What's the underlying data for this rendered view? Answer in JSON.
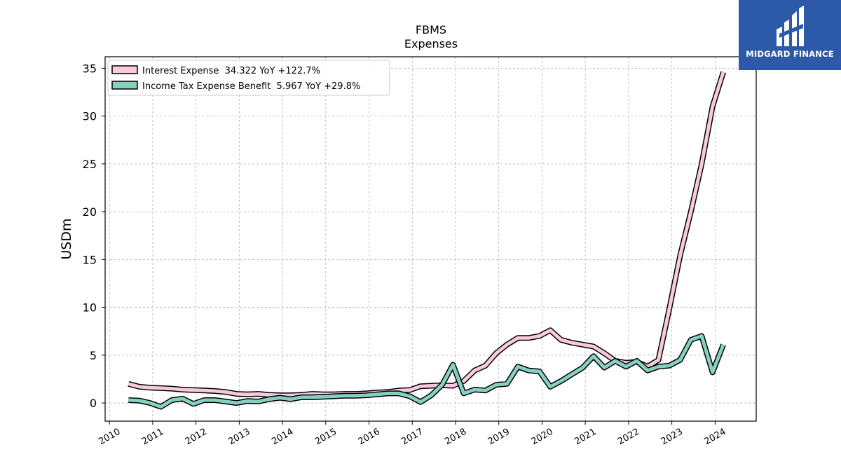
{
  "logo": {
    "brand_text": "MIDGARD FINANCE",
    "icon": "midgard-logo-icon",
    "background": "#2d5aa8"
  },
  "chart_data": {
    "type": "line",
    "title": "FBMS",
    "subtitle": "Expenses",
    "xlabel": "",
    "ylabel": "USDm",
    "xlim": [
      2009.9,
      2024.95
    ],
    "ylim": [
      -1.9,
      36.2
    ],
    "x_ticks": [
      "2010",
      "2011",
      "2012",
      "2013",
      "2014",
      "2015",
      "2016",
      "2017",
      "2018",
      "2019",
      "2020",
      "2021",
      "2022",
      "2023",
      "2024"
    ],
    "y_ticks": [
      0,
      5,
      10,
      15,
      20,
      25,
      30,
      35
    ],
    "grid": true,
    "legend_position": "top-left",
    "series": [
      {
        "name": "Interest Expense  34.322 YoY +122.7%",
        "color": "#f9c9de",
        "points": [
          [
            2010.44,
            2.0
          ],
          [
            2010.69,
            1.7
          ],
          [
            2010.94,
            1.6
          ],
          [
            2011.19,
            1.55
          ],
          [
            2011.44,
            1.5
          ],
          [
            2011.69,
            1.4
          ],
          [
            2011.94,
            1.35
          ],
          [
            2012.19,
            1.3
          ],
          [
            2012.44,
            1.25
          ],
          [
            2012.69,
            1.15
          ],
          [
            2012.94,
            0.95
          ],
          [
            2013.19,
            0.9
          ],
          [
            2013.44,
            0.95
          ],
          [
            2013.69,
            0.85
          ],
          [
            2013.94,
            0.8
          ],
          [
            2014.19,
            0.8
          ],
          [
            2014.44,
            0.85
          ],
          [
            2014.69,
            0.95
          ],
          [
            2014.94,
            0.9
          ],
          [
            2015.19,
            0.9
          ],
          [
            2015.44,
            0.95
          ],
          [
            2015.69,
            0.95
          ],
          [
            2015.94,
            1.0
          ],
          [
            2016.19,
            1.1
          ],
          [
            2016.44,
            1.15
          ],
          [
            2016.69,
            1.3
          ],
          [
            2016.94,
            1.35
          ],
          [
            2017.19,
            1.75
          ],
          [
            2017.44,
            1.8
          ],
          [
            2017.69,
            1.85
          ],
          [
            2017.94,
            1.8
          ],
          [
            2018.19,
            2.3
          ],
          [
            2018.44,
            3.4
          ],
          [
            2018.69,
            3.9
          ],
          [
            2018.94,
            5.2
          ],
          [
            2019.19,
            6.1
          ],
          [
            2019.44,
            6.8
          ],
          [
            2019.69,
            6.8
          ],
          [
            2019.94,
            7.0
          ],
          [
            2020.19,
            7.6
          ],
          [
            2020.44,
            6.6
          ],
          [
            2020.69,
            6.3
          ],
          [
            2020.94,
            6.1
          ],
          [
            2021.19,
            5.9
          ],
          [
            2021.44,
            5.2
          ],
          [
            2021.69,
            4.4
          ],
          [
            2021.94,
            4.2
          ],
          [
            2022.19,
            4.3
          ],
          [
            2022.44,
            3.8
          ],
          [
            2022.69,
            4.5
          ],
          [
            2022.94,
            9.8
          ],
          [
            2023.19,
            15.4
          ],
          [
            2023.44,
            20.0
          ],
          [
            2023.69,
            25.0
          ],
          [
            2023.94,
            31.0
          ],
          [
            2024.19,
            34.6
          ]
        ]
      },
      {
        "name": "Income Tax Expense Benefit  5.967 YoY +29.8%",
        "color": "#86d0c2",
        "points": [
          [
            2010.44,
            0.3
          ],
          [
            2010.69,
            0.25
          ],
          [
            2010.94,
            0.0
          ],
          [
            2011.19,
            -0.4
          ],
          [
            2011.44,
            0.3
          ],
          [
            2011.69,
            0.45
          ],
          [
            2011.94,
            -0.1
          ],
          [
            2012.19,
            0.3
          ],
          [
            2012.44,
            0.3
          ],
          [
            2012.69,
            0.15
          ],
          [
            2012.94,
            0.0
          ],
          [
            2013.19,
            0.2
          ],
          [
            2013.44,
            0.15
          ],
          [
            2013.69,
            0.4
          ],
          [
            2013.94,
            0.55
          ],
          [
            2014.19,
            0.4
          ],
          [
            2014.44,
            0.6
          ],
          [
            2014.69,
            0.6
          ],
          [
            2014.94,
            0.65
          ],
          [
            2015.19,
            0.7
          ],
          [
            2015.44,
            0.75
          ],
          [
            2015.69,
            0.75
          ],
          [
            2015.94,
            0.8
          ],
          [
            2016.19,
            0.9
          ],
          [
            2016.44,
            1.0
          ],
          [
            2016.69,
            1.0
          ],
          [
            2016.94,
            0.7
          ],
          [
            2017.19,
            0.1
          ],
          [
            2017.44,
            0.8
          ],
          [
            2017.69,
            1.9
          ],
          [
            2017.94,
            4.0
          ],
          [
            2018.19,
            1.0
          ],
          [
            2018.44,
            1.4
          ],
          [
            2018.69,
            1.3
          ],
          [
            2018.94,
            1.9
          ],
          [
            2019.19,
            2.0
          ],
          [
            2019.44,
            3.8
          ],
          [
            2019.69,
            3.4
          ],
          [
            2019.94,
            3.3
          ],
          [
            2020.19,
            1.7
          ],
          [
            2020.44,
            2.3
          ],
          [
            2020.69,
            3.0
          ],
          [
            2020.94,
            3.7
          ],
          [
            2021.19,
            4.9
          ],
          [
            2021.44,
            3.7
          ],
          [
            2021.69,
            4.4
          ],
          [
            2021.94,
            3.8
          ],
          [
            2022.19,
            4.4
          ],
          [
            2022.44,
            3.4
          ],
          [
            2022.69,
            3.8
          ],
          [
            2022.94,
            3.9
          ],
          [
            2023.19,
            4.5
          ],
          [
            2023.44,
            6.6
          ],
          [
            2023.69,
            7.0
          ],
          [
            2023.94,
            3.2
          ],
          [
            2024.19,
            6.1
          ]
        ]
      }
    ]
  }
}
